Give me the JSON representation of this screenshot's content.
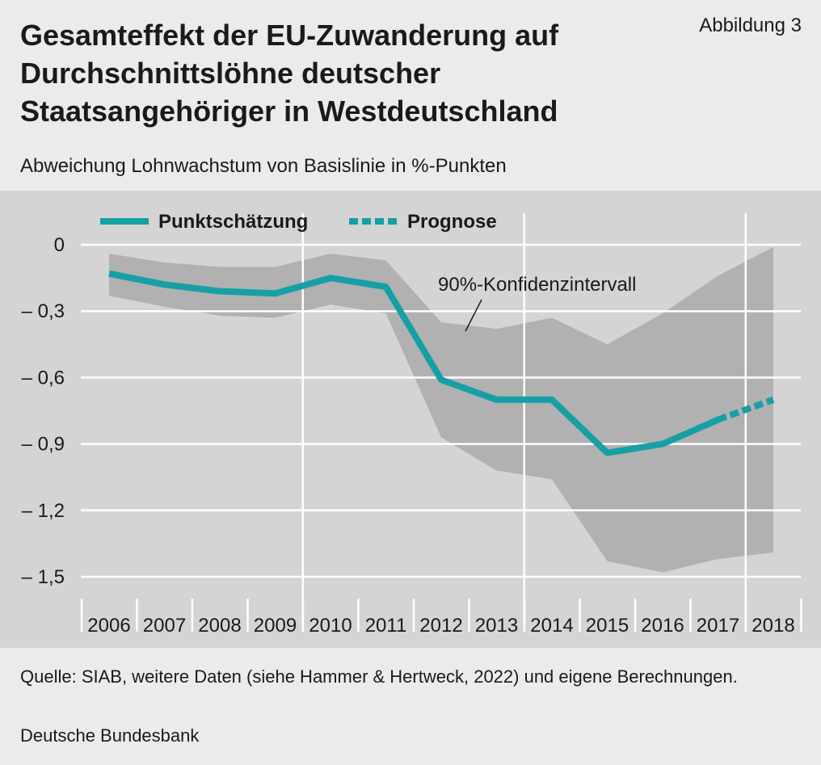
{
  "header": {
    "title": "Gesamteffekt der EU-Zuwanderung auf Durchschnittslöhne deutscher Staatsangehöriger in Westdeutschland",
    "figure_label": "Abbildung 3",
    "subtitle": "Abweichung Lohnwachstum von Basislinie in %-Punkten"
  },
  "footer": {
    "source": "Quelle: SIAB, weitere Daten (siehe Hammer & Hertweck, 2022) und eigene Berechnungen.",
    "publisher": "Deutsche Bundesbank"
  },
  "colors": {
    "panel_bg": "#d4d4d4",
    "band": "#b1b1b1",
    "line": "#16a0a6",
    "grid": "#ffffff"
  },
  "chart_data": {
    "type": "line",
    "x": [
      "2006",
      "2007",
      "2008",
      "2009",
      "2010",
      "2011",
      "2012",
      "2013",
      "2014",
      "2015",
      "2016",
      "2017",
      "2018"
    ],
    "ylim": [
      -1.5,
      0
    ],
    "yticks": [
      0,
      -0.3,
      -0.6,
      -0.9,
      -1.2,
      -1.5
    ],
    "ytick_labels": [
      "0",
      "– 0,3",
      "– 0,6",
      "– 0,9",
      "– 1,2",
      "– 1,5"
    ],
    "grid": true,
    "legend_position": "top-left",
    "series": [
      {
        "name": "Punktschätzung",
        "style": "solid",
        "x": [
          2006,
          2007,
          2008,
          2009,
          2010,
          2011,
          2012,
          2013,
          2014,
          2015,
          2016,
          2017
        ],
        "values": [
          -0.13,
          -0.18,
          -0.21,
          -0.22,
          -0.15,
          -0.19,
          -0.61,
          -0.7,
          -0.7,
          -0.94,
          -0.9,
          -0.79
        ]
      },
      {
        "name": "Prognose",
        "style": "dashed",
        "x": [
          2017,
          2018
        ],
        "values": [
          -0.79,
          -0.7
        ]
      }
    ],
    "band": {
      "name": "90%-Konfidenzintervall",
      "x": [
        2006,
        2007,
        2008,
        2009,
        2010,
        2011,
        2012,
        2013,
        2014,
        2015,
        2016,
        2017,
        2018
      ],
      "upper": [
        -0.04,
        -0.08,
        -0.1,
        -0.1,
        -0.04,
        -0.07,
        -0.35,
        -0.38,
        -0.33,
        -0.45,
        -0.31,
        -0.14,
        -0.01
      ],
      "lower": [
        -0.23,
        -0.28,
        -0.32,
        -0.33,
        -0.27,
        -0.31,
        -0.87,
        -1.02,
        -1.06,
        -1.43,
        -1.48,
        -1.42,
        -1.39
      ]
    }
  }
}
